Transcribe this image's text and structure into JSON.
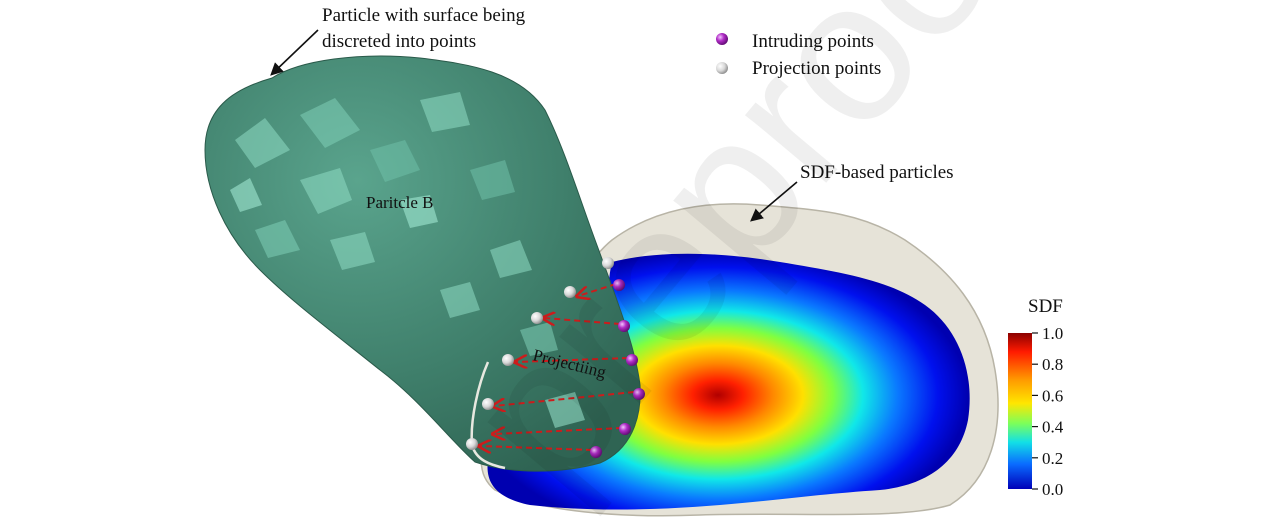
{
  "annotations": {
    "particle_surface_line1": "Particle with surface being",
    "particle_surface_line2": "discreted into points",
    "sdf_particles": "SDF-based particles",
    "particle_b": "Paritcle B",
    "projecting": "Projectiing"
  },
  "legend": {
    "intruding": "Intruding points",
    "projection": "Projection points",
    "intruding_color": "#a020b0",
    "projection_color": "#d8d8d8"
  },
  "colorbar": {
    "title": "SDF",
    "ticks": [
      "1.0",
      "0.8",
      "0.6",
      "0.4",
      "0.2",
      "0.0"
    ]
  },
  "colors": {
    "particle_b": "#3e7d69",
    "shell": "#e6e3d8",
    "arrow": "#cc1c1c"
  },
  "watermark": "preproof"
}
